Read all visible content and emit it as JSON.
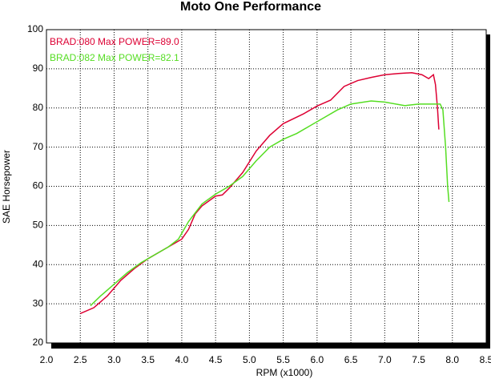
{
  "chart_data": {
    "type": "line",
    "title": "Moto One Performance",
    "x_label": "RPM (x1000)",
    "y_label": "SAE Horsepower",
    "xlim": [
      2.0,
      8.5
    ],
    "ylim": [
      20,
      100
    ],
    "xticks": [
      {
        "value": 2.0,
        "label": "2.0"
      },
      {
        "value": 2.5,
        "label": "2.5"
      },
      {
        "value": 3.0,
        "label": "3.0"
      },
      {
        "value": 3.5,
        "label": "3.5"
      },
      {
        "value": 4.0,
        "label": "4.0"
      },
      {
        "value": 4.5,
        "label": "4.5"
      },
      {
        "value": 5.0,
        "label": "5.0"
      },
      {
        "value": 5.5,
        "label": "5.5"
      },
      {
        "value": 6.0,
        "label": "6.0"
      },
      {
        "value": 6.5,
        "label": "6.5"
      },
      {
        "value": 7.0,
        "label": "7.0"
      },
      {
        "value": 7.5,
        "label": "7.5"
      },
      {
        "value": 8.0,
        "label": "8.0"
      },
      {
        "value": 8.5,
        "label": "8.5"
      }
    ],
    "yticks": [
      20,
      30,
      40,
      50,
      60,
      70,
      80,
      90,
      100
    ],
    "grid": true,
    "series": [
      {
        "name": "BRAD:080  Max POWER=89.0",
        "color": "#dd0033",
        "x": [
          2.5,
          2.7,
          2.9,
          3.1,
          3.3,
          3.5,
          3.7,
          3.9,
          4.0,
          4.1,
          4.2,
          4.3,
          4.5,
          4.6,
          4.7,
          4.9,
          5.1,
          5.3,
          5.5,
          5.8,
          6.0,
          6.2,
          6.4,
          6.6,
          6.8,
          7.0,
          7.2,
          7.4,
          7.55,
          7.65,
          7.72,
          7.75,
          7.78,
          7.8
        ],
        "values": [
          27.5,
          29,
          32,
          36,
          39,
          41.5,
          43.5,
          45.5,
          46.5,
          49,
          53,
          55,
          57.5,
          57.8,
          59.5,
          63.5,
          69,
          73,
          76,
          78.5,
          80.5,
          82,
          85.5,
          87,
          87.8,
          88.5,
          88.8,
          89,
          88.5,
          87.5,
          88.5,
          86,
          80,
          74.5
        ]
      },
      {
        "name": "BRAD:082  Max POWER=82.1",
        "color": "#55dd22",
        "x": [
          2.65,
          2.8,
          3.0,
          3.2,
          3.4,
          3.6,
          3.8,
          3.95,
          4.1,
          4.3,
          4.5,
          4.7,
          4.9,
          5.1,
          5.3,
          5.5,
          5.7,
          5.9,
          6.1,
          6.3,
          6.5,
          6.8,
          7.0,
          7.3,
          7.5,
          7.7,
          7.82,
          7.86,
          7.9,
          7.93,
          7.95
        ],
        "values": [
          29.5,
          32,
          35,
          38,
          40.5,
          42.5,
          44.5,
          46.5,
          51,
          55.5,
          58,
          60,
          62.5,
          66.5,
          70,
          72,
          73.5,
          75.5,
          77.5,
          79.5,
          81,
          81.8,
          81.5,
          80.6,
          81,
          81,
          81,
          79.5,
          70,
          60,
          56
        ]
      }
    ]
  }
}
